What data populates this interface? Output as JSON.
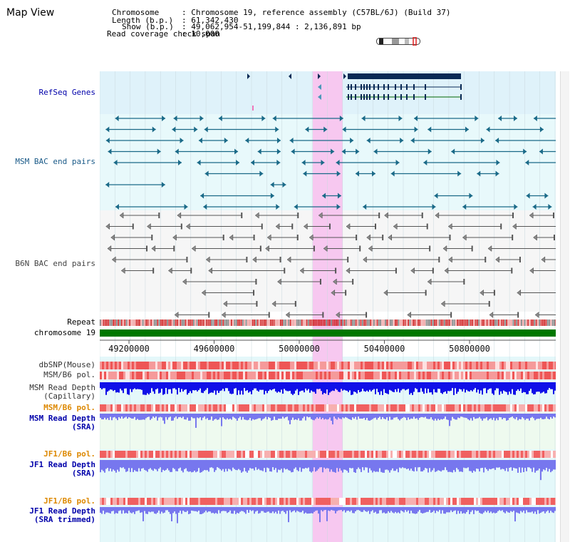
{
  "title": "Map View",
  "info": {
    "chromosome_key": "Chromosome",
    "chromosome_value": ": Chromosome 19, reference assembly (C57BL/6J) (Build 37)",
    "length_key": "Length (b.p.)",
    "length_value": ": 61,342,430",
    "show_key": "Show (b.p.)",
    "show_value": ": 49,062,954-51,199,844 : 2,136,891 bp",
    "coverage_key": "Read coverage check span",
    "coverage_value": ": 10,000"
  },
  "tracks": {
    "refseq": "RefSeq Genes",
    "msm_bac": "MSM BAC end pairs",
    "b6n_bac": "B6N BAC end pairs",
    "repeat": "Repeat",
    "chromosome": "chromosome 19",
    "dbsnp": "dbSNP(Mouse)",
    "msm_b6_pol": "MSM/B6 pol.",
    "msm_depth_cap_1": "MSM Read Depth",
    "msm_depth_cap_2": "(Capillary)",
    "msm_b6_pol_2": "MSM/B6 pol.",
    "msm_depth_sra_1": "MSM Read Depth",
    "msm_depth_sra_2": "(SRA)",
    "jf1_b6_pol": "JF1/B6 pol.",
    "jf1_depth_sra_1": "JF1 Read Depth",
    "jf1_depth_sra_2": "(SRA)",
    "jf1_b6_pol_2": "JF1/B6 pol.",
    "jf1_depth_trim_1": "JF1 Read Depth",
    "jf1_depth_trim_2": "(SRA trimmed)"
  },
  "axis_ticks": [
    "49200000",
    "49600000",
    "50000000",
    "50400000",
    "50800000"
  ],
  "colors": {
    "label_blue": "#0000aa",
    "label_orange": "#dd8800",
    "gene_navy": "#0a2a55",
    "msm_teal": "#1a6a88",
    "b6n_gray": "#555555",
    "chrom_green": "#007700",
    "highlight_pink": "#f7c8f0",
    "depth_blue": "#1010e8",
    "sra_blue": "#7777ee"
  }
}
